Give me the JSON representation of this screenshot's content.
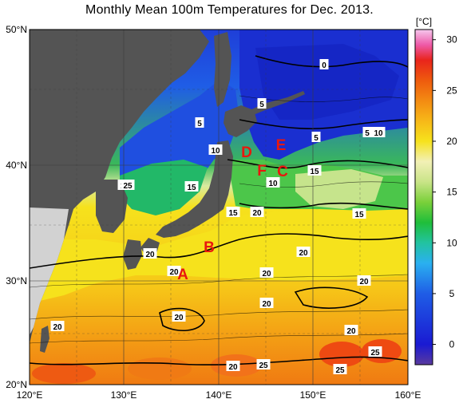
{
  "title": "Monthly Mean 100m Temperatures for Dec. 2013.",
  "colorbar": {
    "unit": "[°C]",
    "ticks": [
      "30",
      "25",
      "20",
      "15",
      "10",
      "5",
      "0"
    ],
    "tick_values": [
      30,
      25,
      20,
      15,
      10,
      5,
      0
    ],
    "range": [
      -2,
      31
    ],
    "stops": [
      {
        "t": -2,
        "color": "#5a3a9e"
      },
      {
        "t": 0,
        "color": "#1a1ad2"
      },
      {
        "t": 5,
        "color": "#1f5de6"
      },
      {
        "t": 8,
        "color": "#2ab0f0"
      },
      {
        "t": 10,
        "color": "#22c3a0"
      },
      {
        "t": 12,
        "color": "#1fbe3a"
      },
      {
        "t": 14,
        "color": "#7ad03a"
      },
      {
        "t": 16,
        "color": "#c9e488"
      },
      {
        "t": 18,
        "color": "#f2f0b6"
      },
      {
        "t": 20,
        "color": "#f6e21c"
      },
      {
        "t": 22,
        "color": "#f7b818"
      },
      {
        "t": 24,
        "color": "#f38b12"
      },
      {
        "t": 26,
        "color": "#ee5a0e"
      },
      {
        "t": 28,
        "color": "#e9241c"
      },
      {
        "t": 29.5,
        "color": "#ee5aa8"
      },
      {
        "t": 31,
        "color": "#f6c8ee"
      }
    ]
  },
  "map": {
    "lon_labels": [
      "120°E",
      "130°E",
      "140°E",
      "150°E",
      "160°E"
    ],
    "lat_labels": [
      "50°N",
      "40°N",
      "30°N",
      "20°N"
    ],
    "colors": {
      "land": "#545454",
      "land_light": "#d2d2d2",
      "coast_warm": "#fff9b0"
    }
  },
  "isotherm_labels": [
    "0",
    "5",
    "5",
    "5",
    "5",
    "10",
    "10",
    "10",
    "10",
    "15",
    "15",
    "15",
    "15",
    "20",
    "20",
    "20",
    "20",
    "20",
    "20",
    "20",
    "20",
    "20",
    "20",
    "20",
    "25",
    "25",
    "25",
    "25"
  ],
  "region_labels": [
    "A",
    "B",
    "C",
    "D",
    "E",
    "F"
  ],
  "chart_data": {
    "type": "heatmap",
    "title": "Monthly Mean 100m Temperatures for Dec. 2013.",
    "xlabel": "",
    "ylabel": "",
    "xlim": [
      120,
      160
    ],
    "ylim": [
      20,
      50
    ],
    "colorbar_label": "[°C]",
    "colorbar_range": [
      -2,
      31
    ],
    "contour_levels": [
      0,
      5,
      10,
      15,
      20,
      25
    ],
    "isotherm_labels": [
      0,
      5,
      5,
      5,
      5,
      10,
      10,
      10,
      10,
      15,
      15,
      15,
      15,
      20,
      20,
      20,
      20,
      20,
      20,
      20,
      20,
      20,
      20,
      20,
      25,
      25,
      25,
      25
    ],
    "region_labels": [
      "A",
      "B",
      "C",
      "D",
      "E",
      "F"
    ]
  }
}
